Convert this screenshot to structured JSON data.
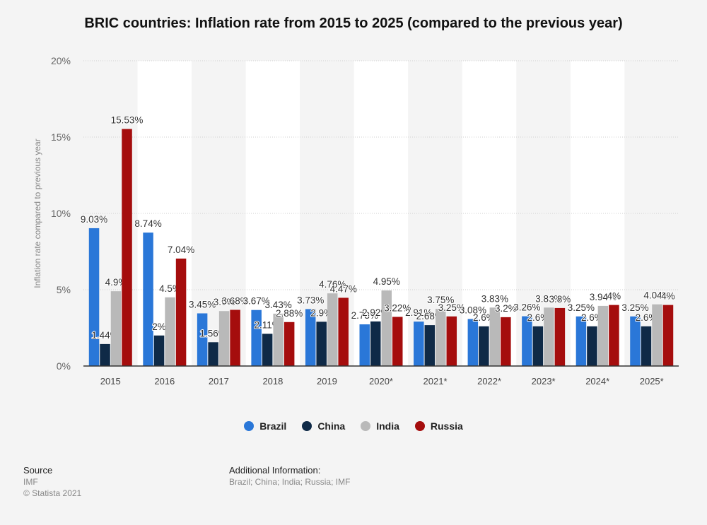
{
  "title": "BRIC countries: Inflation rate from 2015 to 2025 (compared to the previous year)",
  "colors": {
    "Brazil": "#2a77d8",
    "China": "#0f2a47",
    "India": "#b9b9b9",
    "Russia": "#a50d0d"
  },
  "chart_data": {
    "type": "bar",
    "title": "BRIC countries: Inflation rate from 2015 to 2025 (compared to the previous year)",
    "categories": [
      "2015",
      "2016",
      "2017",
      "2018",
      "2019",
      "2020*",
      "2021*",
      "2022*",
      "2023*",
      "2024*",
      "2025*"
    ],
    "series": [
      {
        "name": "Brazil",
        "values": [
          9.03,
          8.74,
          3.45,
          3.67,
          3.73,
          2.73,
          2.91,
          3.08,
          3.26,
          3.25,
          3.25
        ],
        "labels": [
          "9.03%",
          "8.74%",
          "3.45%",
          "3.67%",
          "3.73%",
          "2.73%",
          "2.91%",
          "3.08%",
          "3.26%",
          "3.25%",
          "3.25%"
        ]
      },
      {
        "name": "China",
        "values": [
          1.44,
          2.0,
          1.56,
          2.11,
          2.9,
          2.92,
          2.68,
          2.6,
          2.6,
          2.6,
          2.6
        ],
        "labels": [
          "1.44%",
          "2%",
          "1.56%",
          "2.11%",
          "2.9%",
          "2.92%",
          "2.68%",
          "2.6%",
          "2.6%",
          "2.6%",
          "2.6%"
        ]
      },
      {
        "name": "India",
        "values": [
          4.9,
          4.5,
          3.6,
          3.43,
          4.76,
          4.95,
          3.75,
          3.83,
          3.83,
          3.94,
          4.04
        ],
        "labels": [
          "4.9%",
          "4.5%",
          "3.6%",
          "3.43%",
          "4.76%",
          "4.95%",
          "3.75%",
          "3.83%",
          "3.83%",
          "3.94%",
          "4.04%"
        ]
      },
      {
        "name": "Russia",
        "values": [
          15.53,
          7.04,
          3.68,
          2.88,
          4.47,
          3.22,
          3.25,
          3.2,
          3.8,
          4.0,
          4.0
        ],
        "labels": [
          "15.53%",
          "7.04%",
          "3.68%",
          "2.88%",
          "4.47%",
          "3.22%",
          "3.25%",
          "3.2%",
          "3.8%",
          "4%",
          "4%"
        ]
      }
    ],
    "ylabel": "Inflation rate compared to previous year",
    "xlabel": "",
    "ylim": [
      0,
      20
    ],
    "yticks": [
      "0%",
      "5%",
      "10%",
      "15%",
      "20%"
    ],
    "grid": true,
    "legend_position": "bottom-center"
  },
  "legend": [
    "Brazil",
    "China",
    "India",
    "Russia"
  ],
  "footer": {
    "source_heading": "Source",
    "source": "IMF",
    "copyright": "© Statista 2021",
    "additional_heading": "Additional Information:",
    "additional": "Brazil; China; India; Russia; IMF"
  }
}
